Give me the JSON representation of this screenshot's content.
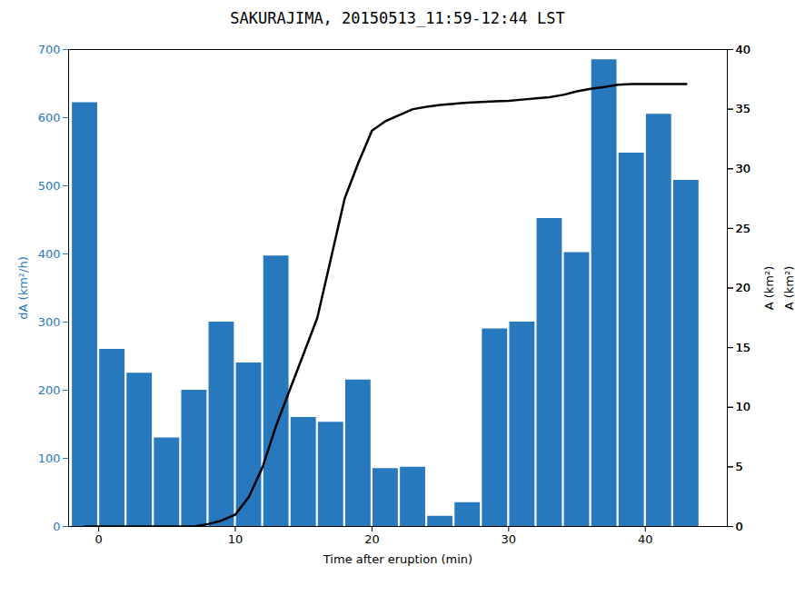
{
  "chart_data": {
    "type": "bar",
    "title": "SAKURAJIMA, 20150513_11:59-12:44 LST",
    "x_label": "Time after eruption (min)",
    "y_label": "dA (km²/h)",
    "y2_label": "A (km²)",
    "xlim": [
      -2.2,
      46.0
    ],
    "xticks": [
      0,
      10,
      20,
      30,
      40
    ],
    "ylim": [
      0,
      700
    ],
    "yticks": [
      0,
      100,
      200,
      300,
      400,
      500,
      600,
      700
    ],
    "y2lim": [
      0,
      40
    ],
    "y2ticks": [
      0,
      5,
      10,
      15,
      20,
      25,
      30,
      35,
      40
    ],
    "grid": false,
    "series": [
      {
        "type": "bar",
        "color": "#2878BE",
        "x": [
          -1,
          1,
          3,
          5,
          7,
          9,
          11,
          13,
          15,
          17,
          19,
          21,
          23,
          25,
          27,
          29,
          31,
          33,
          35,
          37,
          39,
          41,
          43
        ],
        "values": [
          622,
          260,
          225,
          130,
          200,
          300,
          240,
          397,
          160,
          153,
          215,
          85,
          87,
          15,
          35,
          290,
          300,
          452,
          402,
          685,
          548,
          605,
          508
        ]
      },
      {
        "type": "line",
        "color": "#000000",
        "axis": "y2",
        "x": [
          -1,
          1,
          3,
          5,
          6,
          7,
          8,
          9,
          10,
          11,
          12,
          13,
          14,
          15,
          16,
          17,
          18,
          19,
          20,
          21,
          22,
          23,
          24,
          25,
          26,
          27,
          28,
          29,
          30,
          31,
          32,
          33,
          34,
          35,
          36,
          37,
          38,
          39,
          40,
          41,
          43
        ],
        "values": [
          0,
          0,
          0,
          0,
          0,
          0,
          0.2,
          0.5,
          1.0,
          2.5,
          5.0,
          8.5,
          11.5,
          14.5,
          17.5,
          22.5,
          27.5,
          30.5,
          33.2,
          34.0,
          34.5,
          35.0,
          35.2,
          35.35,
          35.45,
          35.55,
          35.6,
          35.65,
          35.7,
          35.8,
          35.9,
          36.0,
          36.2,
          36.5,
          36.7,
          36.85,
          37.05,
          37.1,
          37.1,
          37.1,
          37.1
        ]
      }
    ]
  }
}
